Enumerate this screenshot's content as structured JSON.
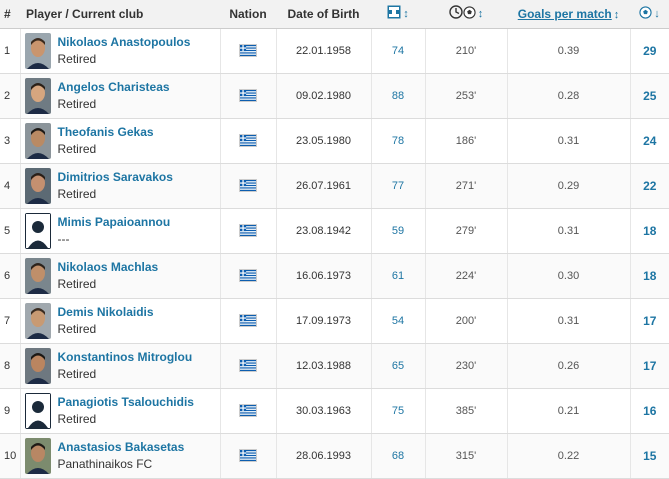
{
  "header": {
    "num": "#",
    "player": "Player / Current club",
    "nation": "Nation",
    "dob": "Date of Birth",
    "gpm": "Goals per match",
    "sort_arrow": "↕",
    "icons": [
      "appearances-icon",
      "minutes-per-goal-icon",
      "goals-icon"
    ]
  },
  "flag": "greece",
  "rows": [
    {
      "num": "1",
      "name": "Nikolaos Anastopoulos",
      "club": "Retired",
      "dob": "22.01.1958",
      "apps": "74",
      "mins": "210'",
      "gpm": "0.39",
      "goals": "29",
      "photo": "photo"
    },
    {
      "num": "2",
      "name": "Angelos Charisteas",
      "club": "Retired",
      "dob": "09.02.1980",
      "apps": "88",
      "mins": "253'",
      "gpm": "0.28",
      "goals": "25",
      "photo": "photo"
    },
    {
      "num": "3",
      "name": "Theofanis Gekas",
      "club": "Retired",
      "dob": "23.05.1980",
      "apps": "78",
      "mins": "186'",
      "gpm": "0.31",
      "goals": "24",
      "photo": "photo"
    },
    {
      "num": "4",
      "name": "Dimitrios Saravakos",
      "club": "Retired",
      "dob": "26.07.1961",
      "apps": "77",
      "mins": "271'",
      "gpm": "0.29",
      "goals": "22",
      "photo": "photo"
    },
    {
      "num": "5",
      "name": "Mimis Papaioannou",
      "club": "---",
      "dob": "23.08.1942",
      "apps": "59",
      "mins": "279'",
      "gpm": "0.31",
      "goals": "18",
      "photo": "placeholder"
    },
    {
      "num": "6",
      "name": "Nikolaos Machlas",
      "club": "Retired",
      "dob": "16.06.1973",
      "apps": "61",
      "mins": "224'",
      "gpm": "0.30",
      "goals": "18",
      "photo": "photo"
    },
    {
      "num": "7",
      "name": "Demis Nikolaidis",
      "club": "Retired",
      "dob": "17.09.1973",
      "apps": "54",
      "mins": "200'",
      "gpm": "0.31",
      "goals": "17",
      "photo": "photo"
    },
    {
      "num": "8",
      "name": "Konstantinos Mitroglou",
      "club": "Retired",
      "dob": "12.03.1988",
      "apps": "65",
      "mins": "230'",
      "gpm": "0.26",
      "goals": "17",
      "photo": "photo"
    },
    {
      "num": "9",
      "name": "Panagiotis Tsalouchidis",
      "club": "Retired",
      "dob": "30.03.1963",
      "apps": "75",
      "mins": "385'",
      "gpm": "0.21",
      "goals": "16",
      "photo": "placeholder"
    },
    {
      "num": "10",
      "name": "Anastasios Bakasetas",
      "club": "Panathinaikos FC",
      "dob": "28.06.1993",
      "apps": "68",
      "mins": "315'",
      "gpm": "0.22",
      "goals": "15",
      "photo": "photo"
    }
  ]
}
